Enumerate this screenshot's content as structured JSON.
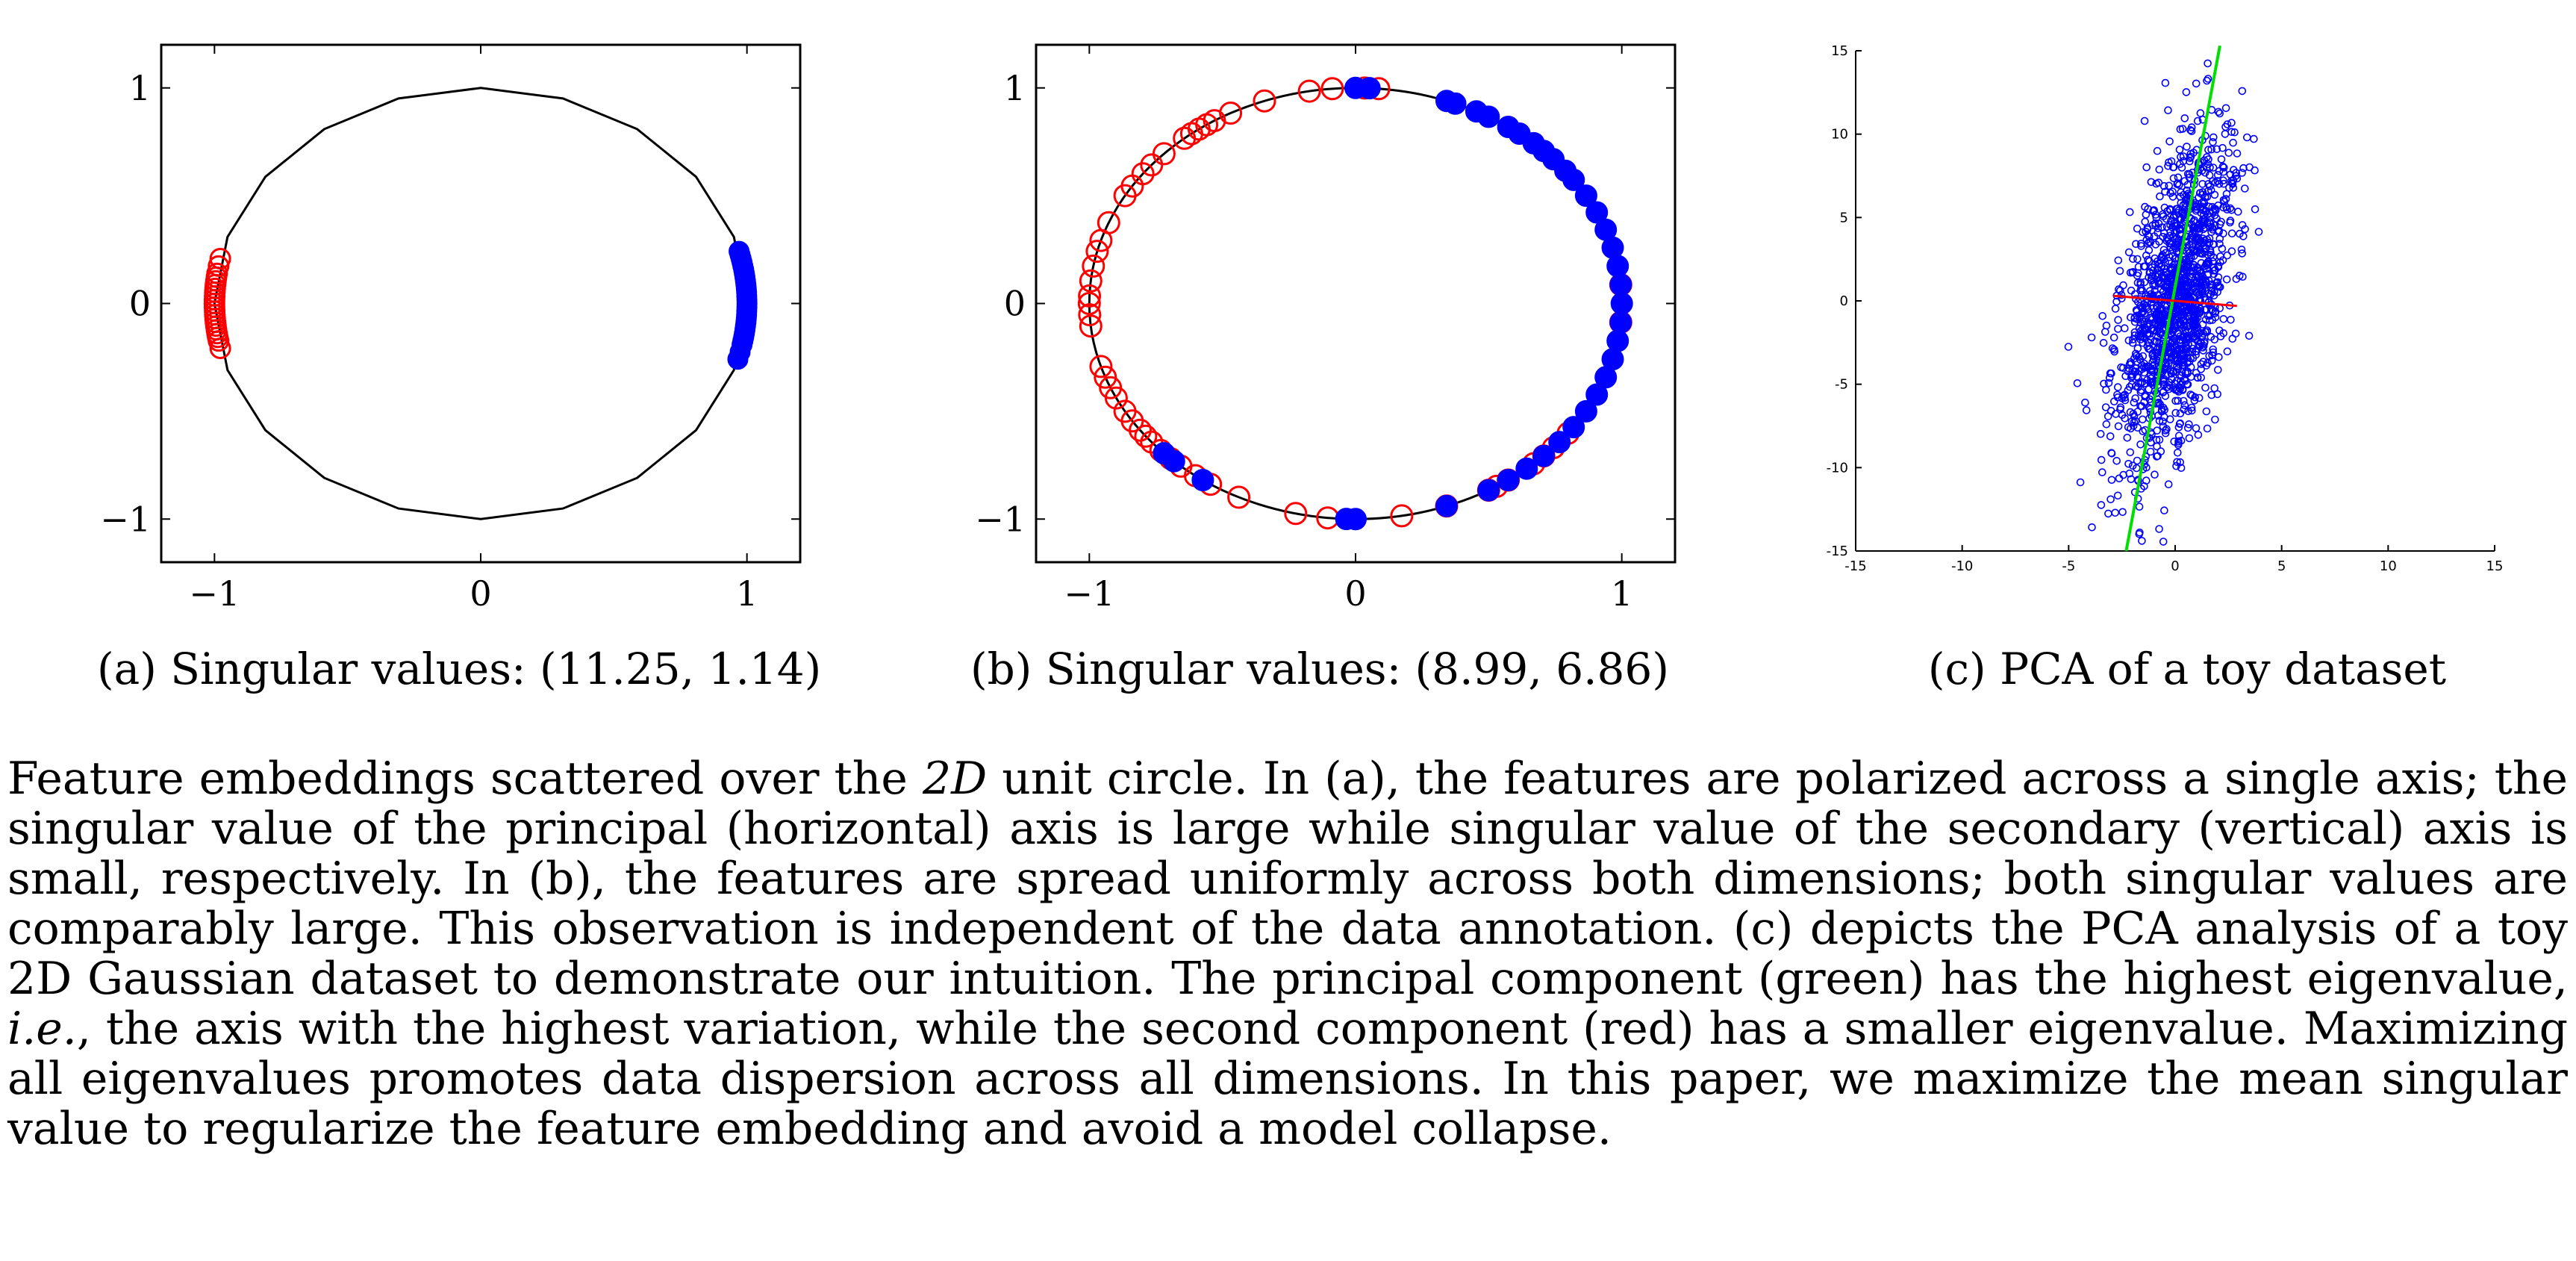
{
  "colors": {
    "red": "#ff0000",
    "blue": "#0000ff",
    "green": "#00e000",
    "curve": "#000000"
  },
  "panels": {
    "a": {
      "caption": "(a) Singular values: (11.25, 1.14)"
    },
    "b": {
      "caption": "(b) Singular values: (8.99, 6.86)"
    },
    "c": {
      "caption": "(c) PCA of a toy dataset"
    }
  },
  "chart_data": [
    {
      "type": "scatter",
      "id": "a",
      "xlim": [
        -1.2,
        1.2
      ],
      "ylim": [
        -1.2,
        1.2
      ],
      "xticks": [
        -1,
        0,
        1
      ],
      "yticks": [
        -1,
        0,
        1
      ],
      "xticklabels": [
        "−1",
        "0",
        "1"
      ],
      "yticklabels": [
        "−1",
        "0",
        "1"
      ],
      "circle": "unit circle (20-segment polygon)",
      "series": [
        {
          "color": "red",
          "marker": "open-circle",
          "angles_deg": [
            168,
            170,
            172,
            173,
            174,
            175,
            176,
            177,
            178,
            179,
            180,
            181,
            182,
            183,
            184,
            185,
            186,
            187,
            188,
            189,
            190,
            192
          ]
        },
        {
          "color": "blue",
          "marker": "filled-circle",
          "angles_deg": [
            -15,
            -13,
            -11,
            -10,
            -9,
            -8,
            -7,
            -6,
            -5,
            -4,
            -3,
            -2,
            -1,
            0,
            1,
            2,
            3,
            4,
            5,
            6,
            7,
            8,
            9,
            10,
            11,
            12,
            13,
            14
          ]
        }
      ]
    },
    {
      "type": "scatter",
      "id": "b",
      "xlim": [
        -1.2,
        1.2
      ],
      "ylim": [
        -1.2,
        1.2
      ],
      "xticks": [
        -1,
        0,
        1
      ],
      "yticks": [
        -1,
        0,
        1
      ],
      "xticklabels": [
        "−1",
        "0",
        "1"
      ],
      "yticklabels": [
        "−1",
        "0",
        "1"
      ],
      "circle": "unit circle",
      "series": [
        {
          "color": "red",
          "marker": "open-circle",
          "angles_deg": [
            85,
            88,
            95,
            100,
            110,
            118,
            122,
            124,
            126,
            128,
            130,
            136,
            140,
            143,
            147,
            150,
            158,
            163,
            166,
            170,
            174,
            178,
            180,
            183,
            186,
            197,
            200,
            203,
            206,
            210,
            213,
            216,
            218,
            220,
            223,
            226,
            229,
            233,
            237,
            244,
            257,
            264,
            280,
            290,
            300,
            302,
            305,
            312,
            315,
            318,
            323,
            355,
            5
          ]
        },
        {
          "color": "blue",
          "marker": "filled-circle",
          "angles_deg": [
            90,
            87,
            70,
            68,
            63,
            60,
            55,
            52,
            48,
            45,
            42,
            38,
            35,
            30,
            25,
            20,
            15,
            10,
            5,
            0,
            -5,
            -10,
            -15,
            -20,
            -25,
            -30,
            -35,
            -40,
            -45,
            -50,
            -55,
            -60,
            -70,
            -90,
            -92,
            -125,
            -133,
            -136
          ]
        }
      ]
    },
    {
      "type": "scatter",
      "id": "c",
      "xlim": [
        -15,
        15
      ],
      "ylim": [
        -15,
        15
      ],
      "xticks": [
        -15,
        -10,
        -5,
        0,
        5,
        10,
        15
      ],
      "yticks": [
        -15,
        -10,
        -5,
        0,
        5,
        10,
        15
      ],
      "xticklabels": [
        "-15",
        "-10",
        "-5",
        "0",
        "5",
        "10",
        "15"
      ],
      "yticklabels": [
        "-15",
        "-10",
        "-5",
        "0",
        "5",
        "10",
        "15"
      ],
      "points": "toy 2D Gaussian dataset (≈1500 points), std x ≈ 1.2, std y ≈ 5, positively correlated",
      "principal_component": {
        "color": "green",
        "from": [
          -2.3,
          -15
        ],
        "to": [
          2.1,
          15.3
        ]
      },
      "second_component": {
        "color": "red",
        "from": [
          -2.9,
          0.3
        ],
        "to": [
          2.9,
          -0.3
        ]
      }
    }
  ],
  "figure_caption": {
    "p1": "Feature embeddings scattered over the ",
    "m1": "2D",
    "p2": " unit circle. In (a), the features are polarized across a single axis; the singular value of the principal (horizontal) axis is large while singular value of the secondary (vertical) axis is small, respectively. In (b), the features are spread uniformly across both dimensions; both singular values are comparably large. This observation is independent of the data annotation. (c) depicts the PCA analysis of a toy 2D Gaussian dataset to demonstrate our intuition. The principal component (green) has the highest eigenvalue, ",
    "ie": "i.e.",
    "p3": ", the axis with the highest variation, while the second component (red) has a smaller eigenvalue. Maximizing all eigenvalues promotes data dispersion across all dimensions. In this paper, we maximize the mean singular value to regularize the feature embedding and avoid a model collapse."
  }
}
